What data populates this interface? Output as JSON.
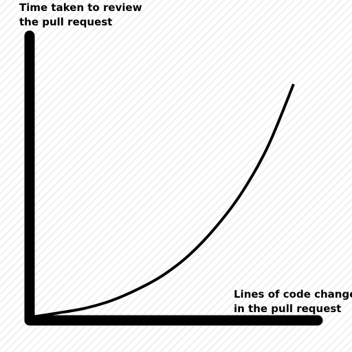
{
  "chart_data": {
    "type": "line",
    "title": "",
    "ylabel_lines": [
      "Time taken to review",
      "the pull request"
    ],
    "xlabel_lines": [
      "Lines of code changed",
      "in the pull request"
    ],
    "axis_color": "#000000",
    "line_color": "#000000",
    "background_color": "#ffffff",
    "stripe_color": "#f0f0f0",
    "grid": false,
    "show_ticks": false,
    "series": [
      {
        "shape": "exponential-growth",
        "x": [
          0,
          0.1,
          0.2,
          0.3,
          0.4,
          0.5,
          0.6,
          0.7,
          0.8,
          0.9,
          1.0
        ],
        "y": [
          0.0,
          0.014,
          0.03,
          0.056,
          0.095,
          0.145,
          0.215,
          0.31,
          0.43,
          0.59,
          0.81
        ]
      }
    ]
  }
}
